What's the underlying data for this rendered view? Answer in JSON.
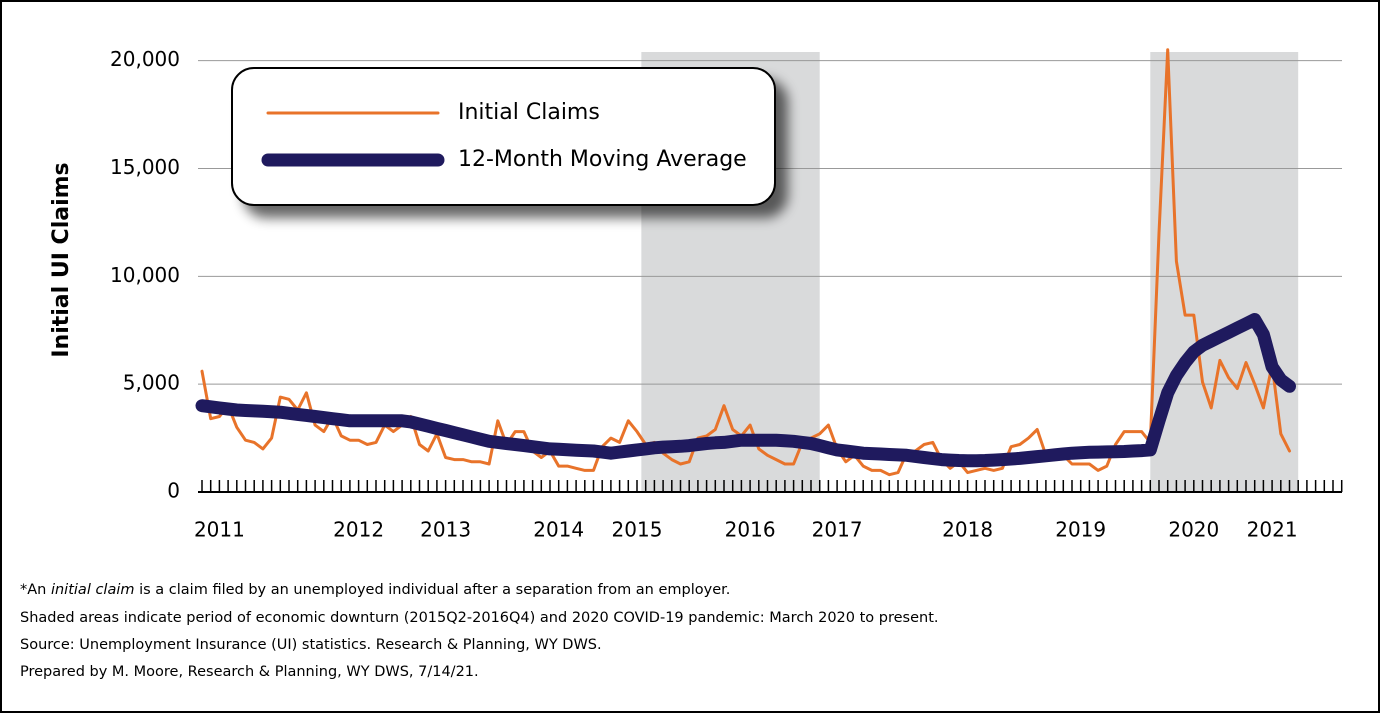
{
  "chart_data": {
    "type": "line",
    "y_label": "Initial UI Claims",
    "categories": [
      null,
      null,
      "2011",
      null,
      null,
      null,
      null,
      null,
      null,
      null,
      null,
      null,
      null,
      null,
      null,
      null,
      null,
      null,
      "2012",
      null,
      null,
      null,
      null,
      null,
      null,
      null,
      null,
      null,
      "2013",
      null,
      null,
      null,
      null,
      null,
      null,
      null,
      null,
      null,
      null,
      null,
      null,
      "2014",
      null,
      null,
      null,
      null,
      null,
      null,
      null,
      null,
      "2015",
      null,
      null,
      null,
      null,
      null,
      null,
      null,
      null,
      null,
      null,
      null,
      null,
      "2016",
      null,
      null,
      null,
      null,
      null,
      null,
      null,
      null,
      null,
      "2017",
      null,
      null,
      null,
      null,
      null,
      null,
      null,
      null,
      null,
      null,
      null,
      null,
      null,
      null,
      "2018",
      null,
      null,
      null,
      null,
      null,
      null,
      null,
      null,
      null,
      null,
      null,
      null,
      "2019",
      null,
      null,
      null,
      null,
      null,
      null,
      null,
      null,
      null,
      null,
      null,
      null,
      "2020",
      null,
      null,
      null,
      null,
      null,
      null,
      null,
      null,
      "2021",
      null,
      null
    ],
    "series": [
      {
        "name": "Initial Claims",
        "color": "#e8732a",
        "width": 3,
        "values": [
          5600,
          3400,
          3500,
          4000,
          3000,
          2400,
          2300,
          2000,
          2500,
          4400,
          4300,
          3800,
          4600,
          3100,
          2800,
          3500,
          2600,
          2400,
          2400,
          2200,
          2300,
          3100,
          2800,
          3100,
          3500,
          2200,
          1900,
          2700,
          1600,
          1500,
          1500,
          1400,
          1400,
          1300,
          3300,
          2200,
          2800,
          2800,
          1900,
          1600,
          1900,
          1200,
          1200,
          1100,
          1000,
          1000,
          2100,
          2500,
          2300,
          3300,
          2800,
          2200,
          2300,
          1800,
          1500,
          1300,
          1400,
          2500,
          2600,
          2900,
          4000,
          2900,
          2600,
          3100,
          2000,
          1700,
          1500,
          1300,
          1300,
          2300,
          2500,
          2700,
          3100,
          2000,
          1400,
          1700,
          1200,
          1000,
          1000,
          800,
          900,
          1800,
          1900,
          2200,
          2300,
          1500,
          1100,
          1400,
          900,
          1000,
          1100,
          1000,
          1100,
          2100,
          2200,
          2500,
          2900,
          1700,
          1500,
          1700,
          1300,
          1300,
          1300,
          1000,
          1200,
          2200,
          2800,
          2800,
          2800,
          2300,
          12000,
          20500,
          10700,
          8200,
          8200,
          5100,
          3900,
          6100,
          5300,
          4800,
          6000,
          5000,
          3900,
          5900,
          2700,
          1900
        ]
      },
      {
        "name": "12-Month Moving Average",
        "color": "#1f1a5e",
        "width": 13,
        "values": [
          4000,
          3950,
          3900,
          3850,
          3800,
          3780,
          3760,
          3740,
          3720,
          3700,
          3650,
          3600,
          3550,
          3500,
          3450,
          3400,
          3350,
          3300,
          3300,
          3300,
          3300,
          3300,
          3300,
          3300,
          3250,
          3150,
          3050,
          2950,
          2850,
          2750,
          2650,
          2550,
          2450,
          2350,
          2300,
          2250,
          2200,
          2150,
          2100,
          2050,
          2000,
          1980,
          1960,
          1940,
          1920,
          1900,
          1850,
          1800,
          1850,
          1900,
          1950,
          2000,
          2050,
          2080,
          2100,
          2120,
          2150,
          2200,
          2250,
          2280,
          2300,
          2350,
          2400,
          2400,
          2400,
          2400,
          2400,
          2380,
          2350,
          2300,
          2250,
          2150,
          2050,
          1950,
          1900,
          1850,
          1800,
          1780,
          1760,
          1740,
          1720,
          1700,
          1650,
          1600,
          1550,
          1500,
          1480,
          1460,
          1450,
          1450,
          1460,
          1480,
          1500,
          1530,
          1560,
          1600,
          1640,
          1680,
          1720,
          1760,
          1800,
          1820,
          1840,
          1850,
          1860,
          1870,
          1880,
          1900,
          1920,
          1950,
          3300,
          4600,
          5400,
          6000,
          6500,
          6800,
          7000,
          7200,
          7400,
          7600,
          7800,
          8000,
          7300,
          5800,
          5200,
          4900
        ]
      }
    ],
    "ylim": [
      0,
      20400
    ],
    "yticks": [
      0,
      {
        "value": 5000,
        "label": "5,000"
      },
      {
        "value": 10000,
        "label": "10,000"
      },
      {
        "value": 15000,
        "label": "15,000"
      },
      {
        "value": 20000,
        "label": "20,000"
      }
    ],
    "grid": true,
    "shaded_ranges": [
      [
        50.5,
        71
      ],
      [
        109,
        126
      ]
    ],
    "shade_color": "#d9dadb",
    "legend": "upper left",
    "footnote_parts": [
      "*An ",
      "initial claim",
      " is a claim filed by an unemployed individual after a separation from an employer."
    ],
    "notes": [
      "Shaded areas indicate period of economic downturn (2015Q2-2016Q4) and 2020 COVID-19 pandemic: March 2020 to present.",
      "Source: Unemployment Insurance (UI) statistics. Research & Planning, WY DWS.",
      "Prepared by M. Moore, Research & Planning, WY DWS, 7/14/21."
    ]
  }
}
